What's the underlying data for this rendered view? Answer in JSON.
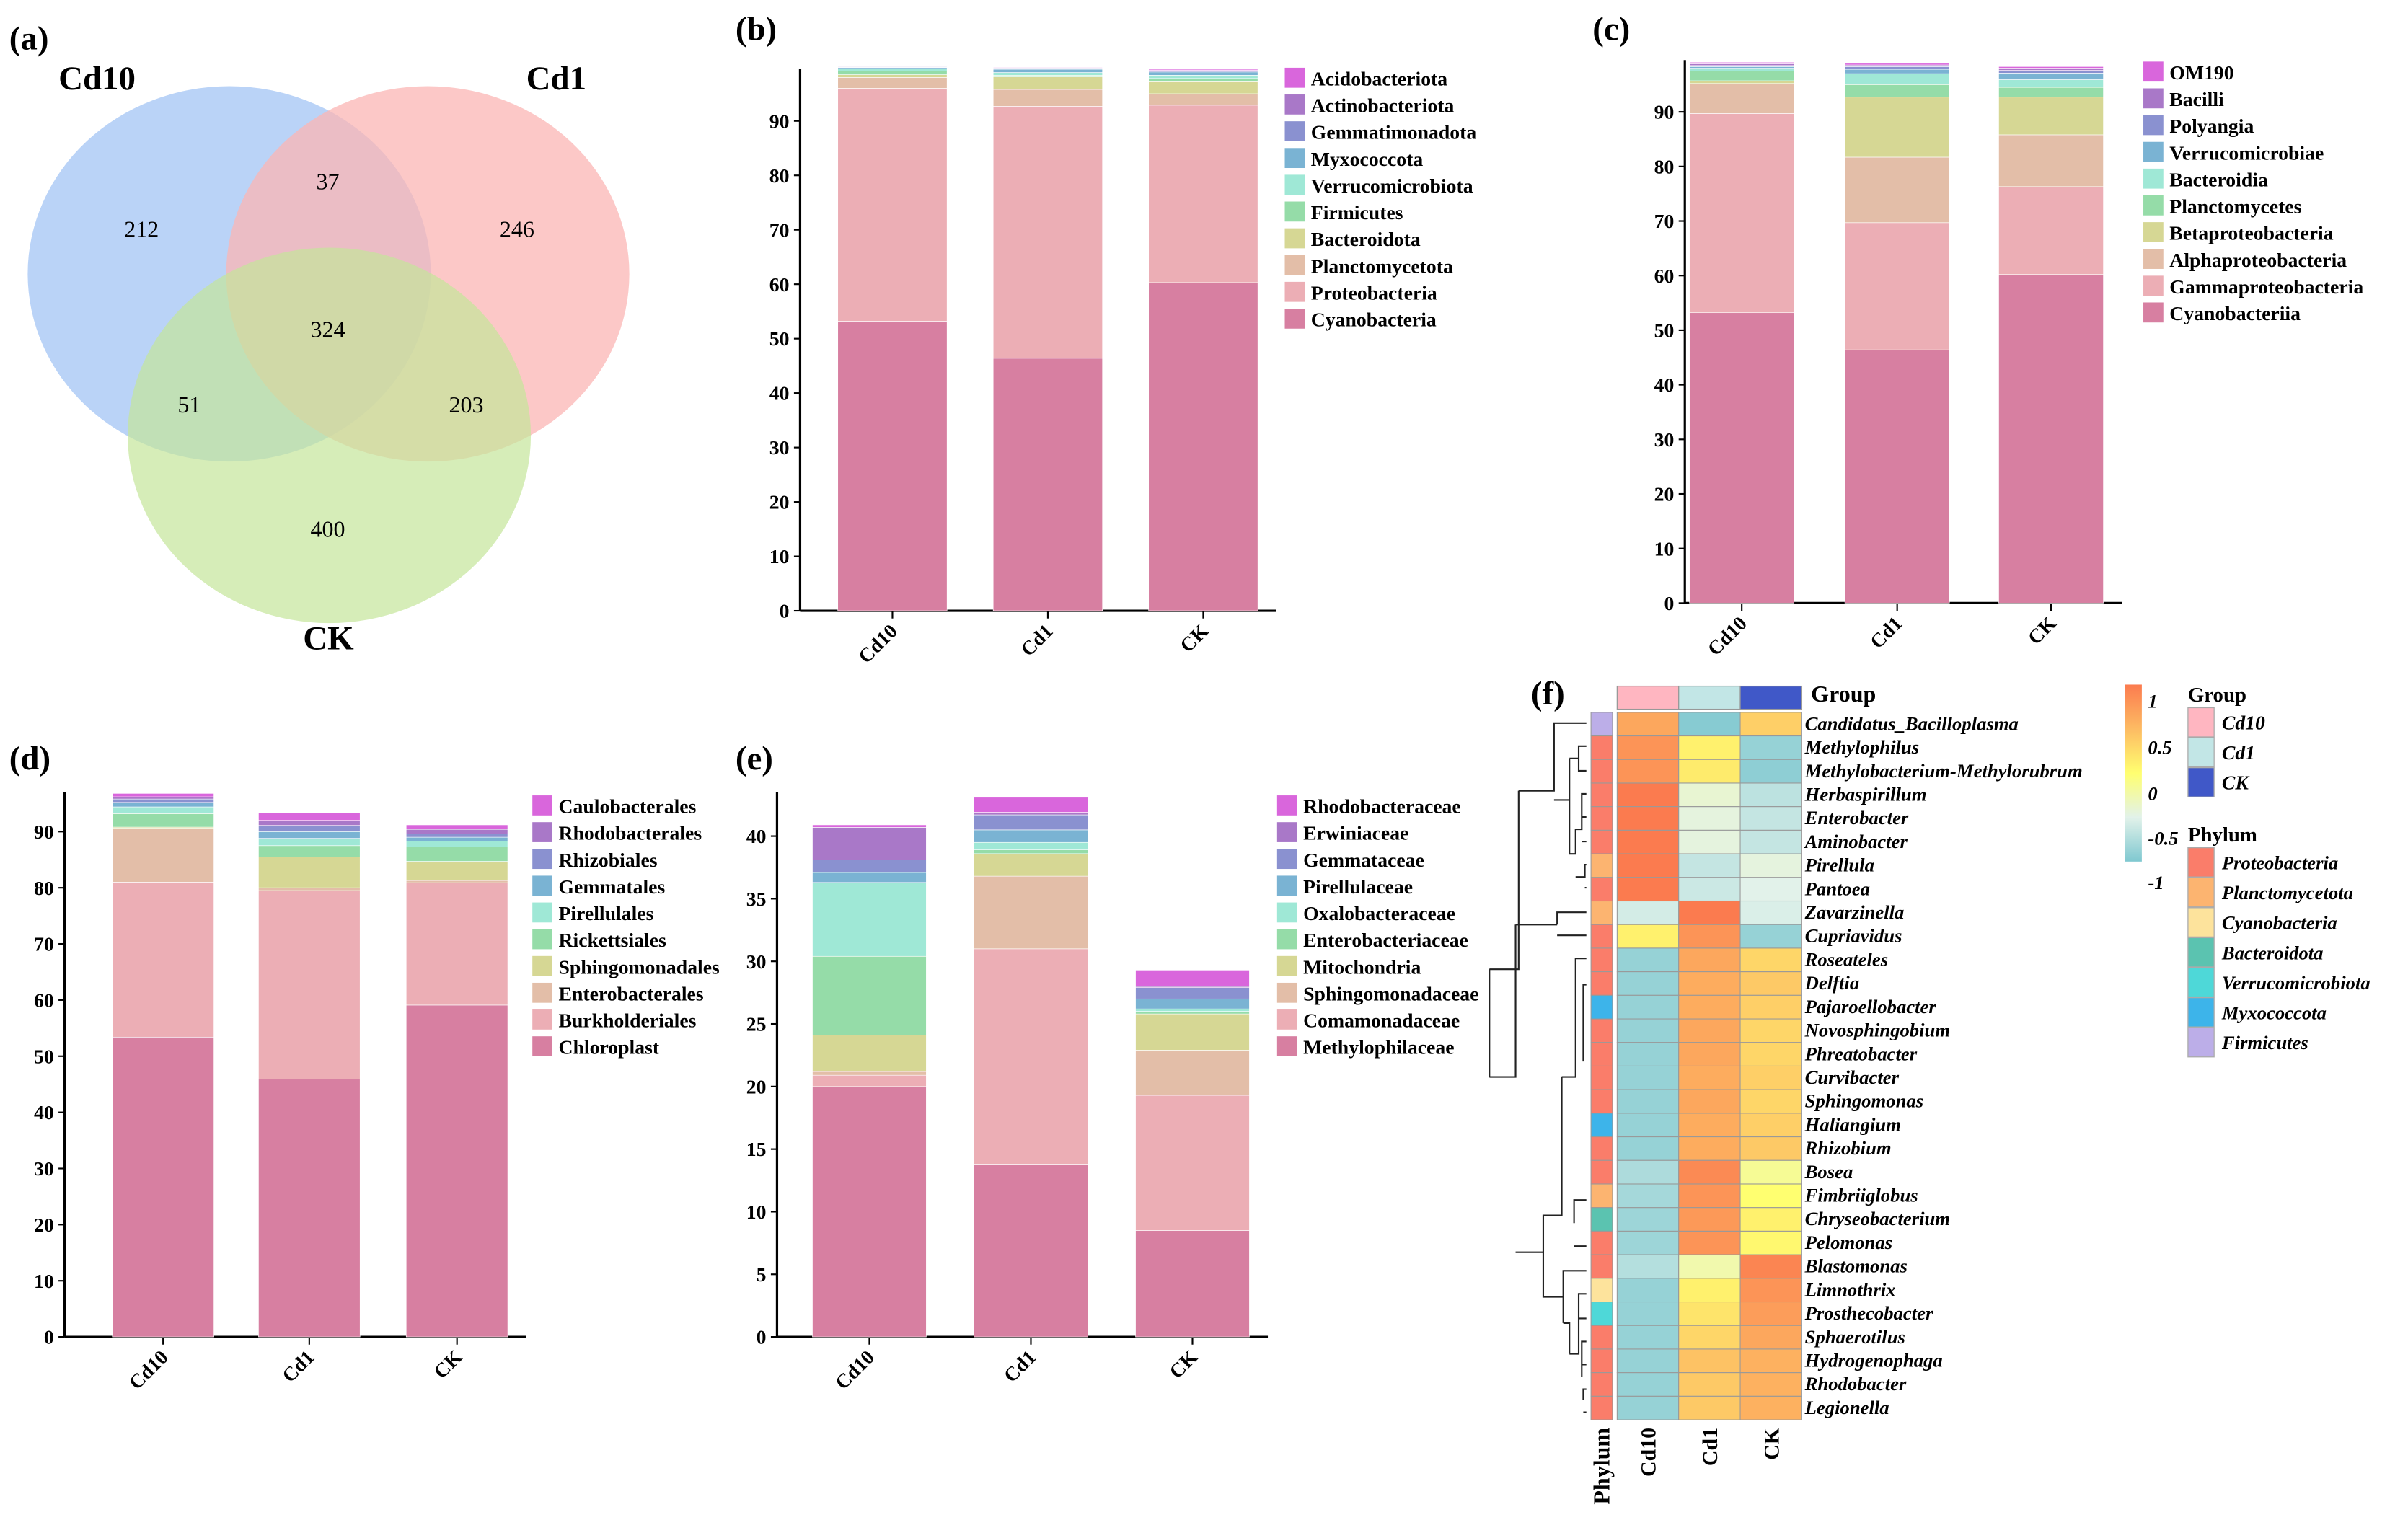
{
  "venn": {
    "panel": "(a)",
    "sets": [
      {
        "name": "Cd10",
        "color": "#a9c8f5"
      },
      {
        "name": "Cd1",
        "color": "#fbb6b4"
      },
      {
        "name": "CK",
        "color": "#c5e69a"
      }
    ],
    "counts": {
      "cd10_only": "212",
      "cd10_cd1": "37",
      "cd1_only": "246",
      "all": "324",
      "cd10_ck": "51",
      "cd1_ck": "203",
      "ck_only": "400"
    }
  },
  "chart_data": [
    {
      "panel": "(b)",
      "type": "bar",
      "stacked": true,
      "title": "",
      "xlabel": "",
      "ylabel": "",
      "categories": [
        "Cd10",
        "Cd1",
        "CK"
      ],
      "ylim": [
        0,
        99.5
      ],
      "yticks": [
        0,
        10,
        20,
        30,
        40,
        50,
        60,
        70,
        80,
        90
      ],
      "series": [
        {
          "name": "Cyanobacteria",
          "color": "#d77fa1",
          "values": [
            53.2,
            46.4,
            60.3
          ]
        },
        {
          "name": "Proteobacteria",
          "color": "#ecaeb5",
          "values": [
            42.8,
            46.3,
            32.6
          ]
        },
        {
          "name": "Planctomycetota",
          "color": "#e3bea8",
          "values": [
            2.0,
            3.1,
            2.1
          ]
        },
        {
          "name": "Bacteroidota",
          "color": "#d6d794",
          "values": [
            0.5,
            2.3,
            2.2
          ]
        },
        {
          "name": "Firmicutes",
          "color": "#95dca8",
          "values": [
            0.7,
            0.3,
            0.6
          ]
        },
        {
          "name": "Verrucomicrobiota",
          "color": "#9fe8d6",
          "values": [
            0.4,
            0.5,
            0.6
          ]
        },
        {
          "name": "Myxococcota",
          "color": "#7ab3d3",
          "values": [
            0.2,
            0.6,
            0.6
          ]
        },
        {
          "name": "Gemmatimonadota",
          "color": "#8a91d0",
          "values": [
            0.1,
            0.2,
            0.2
          ]
        },
        {
          "name": "Actinobacteriota",
          "color": "#a978c8",
          "values": [
            0.1,
            0.1,
            0.1
          ]
        },
        {
          "name": "Acidobacteriota",
          "color": "#d966dc",
          "values": [
            0.1,
            0.1,
            0.2
          ]
        }
      ]
    },
    {
      "panel": "(c)",
      "type": "bar",
      "stacked": true,
      "title": "",
      "xlabel": "",
      "ylabel": "",
      "categories": [
        "Cd10",
        "Cd1",
        "CK"
      ],
      "ylim": [
        0,
        99.5
      ],
      "yticks": [
        0,
        10,
        20,
        30,
        40,
        50,
        60,
        70,
        80,
        90
      ],
      "series": [
        {
          "name": "Cyanobacteriia",
          "color": "#d77fa1",
          "values": [
            53.2,
            46.4,
            60.2
          ]
        },
        {
          "name": "Gammaproteobacteria",
          "color": "#ecaeb5",
          "values": [
            36.5,
            23.3,
            16.1
          ]
        },
        {
          "name": "Alphaproteobacteria",
          "color": "#e3bea8",
          "values": [
            5.5,
            12.0,
            9.5
          ]
        },
        {
          "name": "Betaproteobacteria",
          "color": "#d6d794",
          "values": [
            0.5,
            11.0,
            6.9
          ]
        },
        {
          "name": "Planctomycetes",
          "color": "#95dca8",
          "values": [
            1.8,
            2.3,
            1.8
          ]
        },
        {
          "name": "Bacteroidia",
          "color": "#9fe8d6",
          "values": [
            0.5,
            2.0,
            1.4
          ]
        },
        {
          "name": "Verrucomicrobiae",
          "color": "#7ab3d3",
          "values": [
            0.3,
            0.8,
            1.2
          ]
        },
        {
          "name": "Polyangia",
          "color": "#8a91d0",
          "values": [
            0.2,
            0.5,
            0.5
          ]
        },
        {
          "name": "Bacilli",
          "color": "#a978c8",
          "values": [
            0.3,
            0.3,
            0.4
          ]
        },
        {
          "name": "OM190",
          "color": "#d966dc",
          "values": [
            0.3,
            0.3,
            0.3
          ]
        }
      ]
    },
    {
      "panel": "(d)",
      "type": "bar",
      "stacked": true,
      "title": "",
      "xlabel": "",
      "ylabel": "",
      "categories": [
        "Cd10",
        "Cd1",
        "CK"
      ],
      "ylim": [
        0,
        97
      ],
      "yticks": [
        0,
        10,
        20,
        30,
        40,
        50,
        60,
        70,
        80,
        90
      ],
      "series": [
        {
          "name": "Chloroplast",
          "color": "#d77fa1",
          "values": [
            53.4,
            45.9,
            59.1
          ]
        },
        {
          "name": "Burkholderiales",
          "color": "#ecaeb5",
          "values": [
            27.6,
            33.6,
            21.8
          ]
        },
        {
          "name": "Enterobacterales",
          "color": "#e3bea8",
          "values": [
            9.6,
            0.5,
            0.4
          ]
        },
        {
          "name": "Sphingomonadales",
          "color": "#d6d794",
          "values": [
            0.2,
            5.5,
            3.4
          ]
        },
        {
          "name": "Rickettsiales",
          "color": "#95dca8",
          "values": [
            2.4,
            2.0,
            2.6
          ]
        },
        {
          "name": "Pirellulales",
          "color": "#9fe8d6",
          "values": [
            1.2,
            1.3,
            1.0
          ]
        },
        {
          "name": "Gemmatales",
          "color": "#7ab3d3",
          "values": [
            0.8,
            1.2,
            0.7
          ]
        },
        {
          "name": "Rhizobiales",
          "color": "#8a91d0",
          "values": [
            0.6,
            1.1,
            0.6
          ]
        },
        {
          "name": "Rhodobacterales",
          "color": "#a978c8",
          "values": [
            0.4,
            0.9,
            0.8
          ]
        },
        {
          "name": "Caulobacterales",
          "color": "#d966dc",
          "values": [
            0.6,
            1.3,
            0.8
          ]
        }
      ]
    },
    {
      "panel": "(e)",
      "type": "bar",
      "stacked": true,
      "title": "",
      "xlabel": "",
      "ylabel": "",
      "categories": [
        "Cd10",
        "Cd1",
        "CK"
      ],
      "ylim": [
        0,
        43.5
      ],
      "yticks": [
        0,
        5,
        10,
        15,
        20,
        25,
        30,
        35,
        40
      ],
      "series": [
        {
          "name": "Methylophilaceae",
          "color": "#d77fa1",
          "values": [
            20.0,
            13.8,
            8.5
          ]
        },
        {
          "name": "Comamonadaceae",
          "color": "#ecaeb5",
          "values": [
            0.9,
            17.2,
            10.8
          ]
        },
        {
          "name": "Sphingomonadaceae",
          "color": "#e3bea8",
          "values": [
            0.3,
            5.8,
            3.6
          ]
        },
        {
          "name": "Mitochondria",
          "color": "#d6d794",
          "values": [
            2.9,
            1.8,
            2.9
          ]
        },
        {
          "name": "Enterobacteriaceae",
          "color": "#95dca8",
          "values": [
            6.3,
            0.3,
            0.2
          ]
        },
        {
          "name": "Oxalobacteraceae",
          "color": "#9fe8d6",
          "values": [
            5.9,
            0.6,
            0.2
          ]
        },
        {
          "name": "Pirellulaceae",
          "color": "#7ab3d3",
          "values": [
            0.8,
            1.0,
            0.8
          ]
        },
        {
          "name": "Gemmataceae",
          "color": "#8a91d0",
          "values": [
            1.0,
            1.2,
            0.9
          ]
        },
        {
          "name": "Erwiniaceae",
          "color": "#a978c8",
          "values": [
            2.6,
            0.2,
            0.1
          ]
        },
        {
          "name": "Rhodobacteraceae",
          "color": "#d966dc",
          "values": [
            0.2,
            1.2,
            1.3
          ]
        }
      ]
    },
    {
      "panel": "(f)",
      "type": "heatmap",
      "title": "",
      "columns": [
        "Cd10",
        "Cd1",
        "CK"
      ],
      "column_annotation_title": "Group",
      "group_colors": {
        "Cd10": "#ffb6c1",
        "Cd1": "#c2e6e6",
        "CK": "#4058c8"
      },
      "row_annotation_title": "Phylum",
      "phylum_colors": {
        "Proteobacteria": "#fa7d6a",
        "Planctomycetota": "#fcb470",
        "Cyanobacteria": "#fde39c",
        "Bacteroidota": "#5bc3b0",
        "Verrucomicrobiota": "#4ed8d8",
        "Myxococcota": "#3db4ea",
        "Firmicutes": "#bcaee8"
      },
      "colorbar": {
        "ticks": [
          "1",
          "0.5",
          "0",
          "-0.5",
          "-1"
        ],
        "range": [
          -1.15,
          1.15
        ]
      },
      "rows": [
        {
          "name": "Candidatus_Bacilloplasma",
          "phylum": "Firmicutes",
          "values": [
            0.7,
            -1.1,
            0.35
          ]
        },
        {
          "name": "Methylophilus",
          "phylum": "Proteobacteria",
          "values": [
            0.9,
            0.1,
            -1.0
          ]
        },
        {
          "name": "Methylobacterium-Methylorubrum",
          "phylum": "Proteobacteria",
          "values": [
            0.9,
            0.15,
            -1.05
          ]
        },
        {
          "name": "Herbaspirillum",
          "phylum": "Proteobacteria",
          "values": [
            1.15,
            -0.4,
            -0.75
          ]
        },
        {
          "name": "Enterobacter",
          "phylum": "Proteobacteria",
          "values": [
            1.15,
            -0.45,
            -0.7
          ]
        },
        {
          "name": "Aminobacter",
          "phylum": "Proteobacteria",
          "values": [
            1.15,
            -0.45,
            -0.7
          ]
        },
        {
          "name": "Pirellula",
          "phylum": "Planctomycetota",
          "values": [
            1.15,
            -0.7,
            -0.45
          ]
        },
        {
          "name": "Pantoea",
          "phylum": "Proteobacteria",
          "values": [
            1.15,
            -0.65,
            -0.5
          ]
        },
        {
          "name": "Zavarzinella",
          "phylum": "Planctomycetota",
          "values": [
            -0.6,
            1.15,
            -0.55
          ]
        },
        {
          "name": "Cupriavidus",
          "phylum": "Proteobacteria",
          "values": [
            0.1,
            0.9,
            -1.0
          ]
        },
        {
          "name": "Roseateles",
          "phylum": "Proteobacteria",
          "values": [
            -1.0,
            0.7,
            0.3
          ]
        },
        {
          "name": "Delftia",
          "phylum": "Proteobacteria",
          "values": [
            -1.0,
            0.65,
            0.4
          ]
        },
        {
          "name": "Pajaroellobacter",
          "phylum": "Myxococcota",
          "values": [
            -1.0,
            0.65,
            0.35
          ]
        },
        {
          "name": "Novosphingobium",
          "phylum": "Proteobacteria",
          "values": [
            -1.0,
            0.7,
            0.3
          ]
        },
        {
          "name": "Phreatobacter",
          "phylum": "Proteobacteria",
          "values": [
            -1.0,
            0.7,
            0.3
          ]
        },
        {
          "name": "Curvibacter",
          "phylum": "Proteobacteria",
          "values": [
            -1.0,
            0.65,
            0.35
          ]
        },
        {
          "name": "Sphingomonas",
          "phylum": "Proteobacteria",
          "values": [
            -1.0,
            0.7,
            0.3
          ]
        },
        {
          "name": "Haliangium",
          "phylum": "Myxococcota",
          "values": [
            -1.0,
            0.65,
            0.35
          ]
        },
        {
          "name": "Rhizobium",
          "phylum": "Proteobacteria",
          "values": [
            -1.0,
            0.65,
            0.4
          ]
        },
        {
          "name": "Bosea",
          "phylum": "Proteobacteria",
          "values": [
            -0.85,
            1.0,
            -0.15
          ]
        },
        {
          "name": "Fimbriiglobus",
          "phylum": "Planctomycetota",
          "values": [
            -0.9,
            0.9,
            0.0
          ]
        },
        {
          "name": "Chryseobacterium",
          "phylum": "Bacteroidota",
          "values": [
            -0.95,
            0.85,
            0.1
          ]
        },
        {
          "name": "Pelomonas",
          "phylum": "Proteobacteria",
          "values": [
            -0.95,
            0.9,
            0.05
          ]
        },
        {
          "name": "Blastomonas",
          "phylum": "Proteobacteria",
          "values": [
            -0.8,
            -0.25,
            1.05
          ]
        },
        {
          "name": "Limnothrix",
          "phylum": "Cyanobacteria",
          "values": [
            -1.0,
            0.1,
            0.9
          ]
        },
        {
          "name": "Prosthecobacter",
          "phylum": "Verrucomicrobiota",
          "values": [
            -1.0,
            0.2,
            0.8
          ]
        },
        {
          "name": "Sphaerotilus",
          "phylum": "Proteobacteria",
          "values": [
            -1.0,
            0.3,
            0.7
          ]
        },
        {
          "name": "Hydrogenophaga",
          "phylum": "Proteobacteria",
          "values": [
            -1.0,
            0.45,
            0.6
          ]
        },
        {
          "name": "Rhodobacter",
          "phylum": "Proteobacteria",
          "values": [
            -1.0,
            0.4,
            0.6
          ]
        },
        {
          "name": "Legionella",
          "phylum": "Proteobacteria",
          "values": [
            -1.0,
            0.4,
            0.6
          ]
        }
      ]
    }
  ]
}
